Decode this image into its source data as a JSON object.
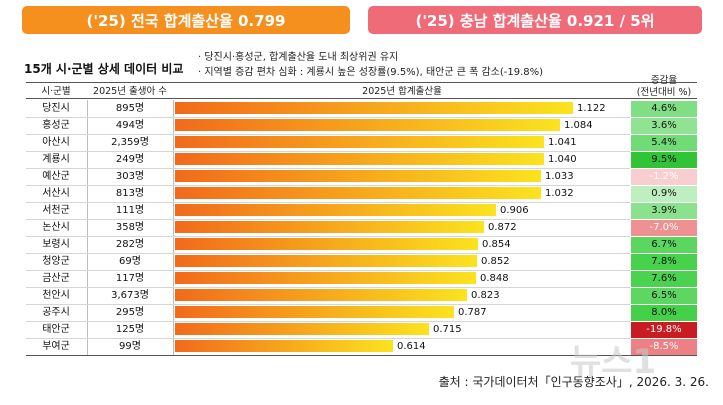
{
  "banners": {
    "left": "('25) 전국 합계출산율 0.799",
    "right": "('25) 충남 합계출산율 0.921 / 5위"
  },
  "subtitle": "15개 시·군별 상세 데이터 비교",
  "notes": [
    "당진시·홍성군, 합계출산율 도내 최상위권 유지",
    "지역별 증감 편차 심화 : 계룡시 높은 성장률(9.5%), 태안군 큰 폭 감소(-19.8%)"
  ],
  "table_headers": {
    "region": "시·군별",
    "births": "2025년 출생아 수",
    "tfr": "2025년 합계출산율",
    "change_line1": "증감율",
    "change_line2": "(전년대비 %)"
  },
  "source": "출처 : 국가데이터처「인구동향조사」, 2026. 3. 26.",
  "watermark": "뉴스1",
  "colors": {
    "banner_left": "#f5901f",
    "banner_right": "#ef6b78",
    "bar_start": "#f26a1b",
    "bar_end": "#fbe31e"
  },
  "chart_data": {
    "type": "bar",
    "orientation": "horizontal",
    "title": "2025년 합계출산율",
    "categories": [
      "당진시",
      "홍성군",
      "아산시",
      "계룡시",
      "예산군",
      "서산시",
      "서천군",
      "논산시",
      "보령시",
      "청양군",
      "금산군",
      "천안시",
      "공주시",
      "태안군",
      "부여군"
    ],
    "births": [
      "895명",
      "494명",
      "2,359명",
      "249명",
      "303명",
      "813명",
      "111명",
      "358명",
      "282명",
      "69명",
      "117명",
      "3,673명",
      "295명",
      "125명",
      "99명"
    ],
    "values": [
      1.122,
      1.084,
      1.041,
      1.04,
      1.033,
      1.032,
      0.906,
      0.872,
      0.854,
      0.852,
      0.848,
      0.823,
      0.787,
      0.715,
      0.614
    ],
    "value_labels": [
      "1.122",
      "1.084",
      "1.041",
      "1.040",
      "1.033",
      "1.032",
      "0.906",
      "0.872",
      "0.854",
      "0.852",
      "0.848",
      "0.823",
      "0.787",
      "0.715",
      "0.614"
    ],
    "change_pct": [
      4.6,
      3.6,
      5.4,
      9.5,
      -1.2,
      0.9,
      3.9,
      -7.0,
      6.7,
      7.8,
      7.6,
      6.5,
      8.0,
      -19.8,
      -8.5
    ],
    "change_labels": [
      "4.6%",
      "3.6%",
      "5.4%",
      "9.5%",
      "-1.2%",
      "0.9%",
      "3.9%",
      "-7.0%",
      "6.7%",
      "7.8%",
      "7.6%",
      "6.5%",
      "8.0%",
      "-19.8%",
      "-8.5%"
    ],
    "xlim": [
      0,
      1.122
    ],
    "grid": false,
    "legend": "none"
  }
}
